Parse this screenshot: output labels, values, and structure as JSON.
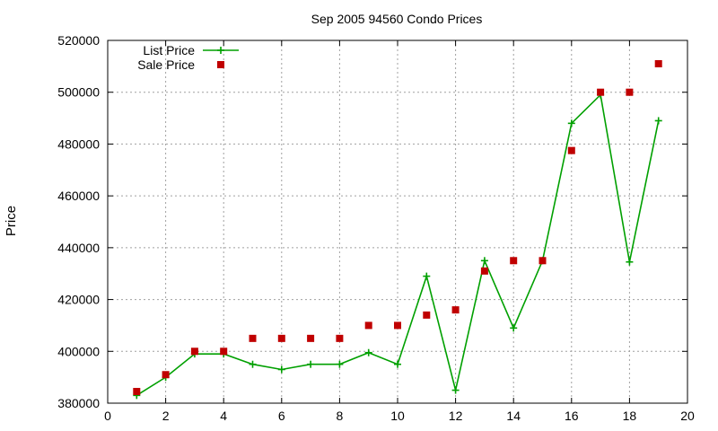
{
  "chart_data": {
    "type": "line",
    "title": "Sep 2005 94560 Condo Prices",
    "xlabel": "",
    "ylabel": "Price",
    "xlim": [
      0,
      20
    ],
    "ylim": [
      380000,
      520000
    ],
    "x_ticks": [
      "0",
      "2",
      "4",
      "6",
      "8",
      "10",
      "12",
      "14",
      "16",
      "18",
      "20"
    ],
    "y_ticks": [
      "380000",
      "400000",
      "420000",
      "440000",
      "460000",
      "480000",
      "500000",
      "520000"
    ],
    "grid": true,
    "legend_position": "top-left",
    "series": [
      {
        "name": "List Price",
        "style": "line-points",
        "color": "#00a000",
        "x": [
          1,
          2,
          3,
          4,
          5,
          6,
          7,
          8,
          9,
          10,
          11,
          12,
          13,
          14,
          15,
          16,
          17,
          18,
          19
        ],
        "y": [
          383000,
          390000,
          399000,
          399000,
          395000,
          393000,
          395000,
          395000,
          399500,
          395000,
          429000,
          385000,
          435000,
          409000,
          435000,
          488000,
          499000,
          434500,
          489000
        ]
      },
      {
        "name": "Sale Price",
        "style": "points",
        "color": "#c00000",
        "x": [
          1,
          2,
          3,
          4,
          5,
          6,
          7,
          8,
          9,
          10,
          11,
          12,
          13,
          14,
          15,
          16,
          17,
          18,
          19
        ],
        "y": [
          384500,
          391000,
          400000,
          400000,
          405000,
          405000,
          405000,
          405000,
          410000,
          410000,
          414000,
          416000,
          431000,
          435000,
          435000,
          477500,
          500000,
          500000,
          511000
        ]
      }
    ]
  }
}
